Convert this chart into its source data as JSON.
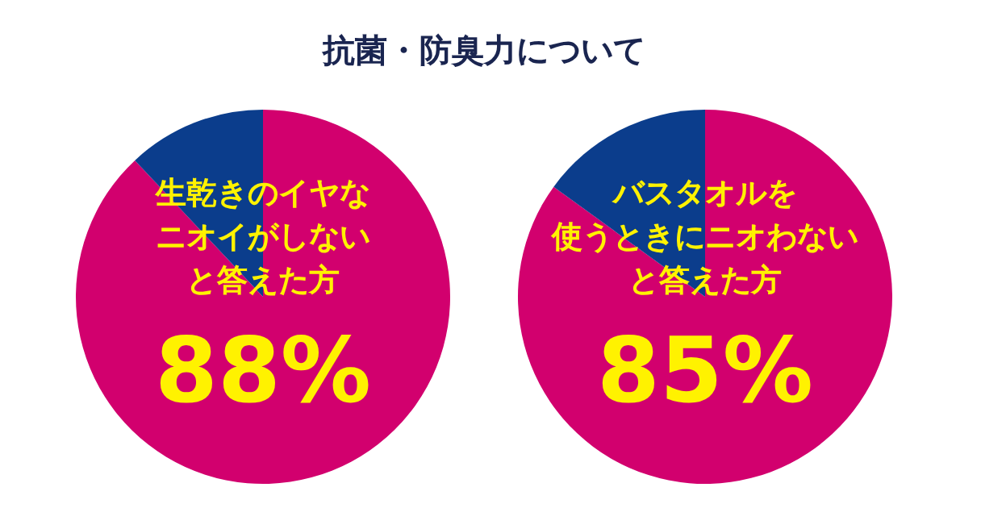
{
  "chart_data": [
    {
      "type": "pie",
      "title": "抗菌・防臭力について",
      "categories": [
        null,
        null
      ],
      "values": [
        88,
        12
      ],
      "colors": [
        "#d2006e",
        "#0b3d8c"
      ],
      "annotations": [
        "生乾きのイヤな",
        "ニオイがしない",
        "と答えた方",
        "88%"
      ]
    },
    {
      "type": "pie",
      "categories": [
        null,
        null
      ],
      "values": [
        85,
        15
      ],
      "colors": [
        "#d2006e",
        "#0b3d8c"
      ],
      "annotations": [
        "バスタオルを",
        "使うときにニオわない",
        "と答えた方",
        "85%"
      ]
    }
  ]
}
